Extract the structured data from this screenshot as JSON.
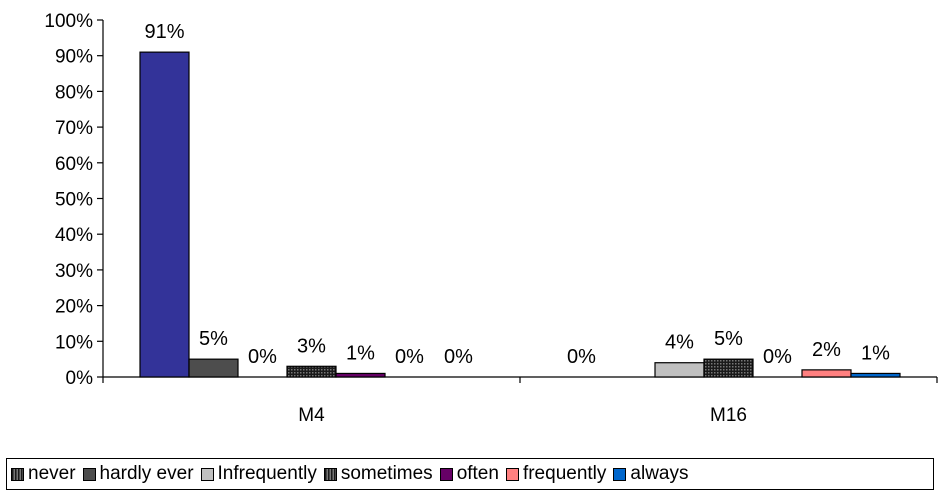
{
  "chart_data": {
    "type": "bar",
    "categories": [
      "M4",
      "M16"
    ],
    "series": [
      {
        "name": "never",
        "values": [
          91,
          0
        ],
        "labels": [
          "91%",
          "0%"
        ],
        "color": "#333399"
      },
      {
        "name": "hardly ever",
        "values": [
          5,
          0
        ],
        "labels": [
          "5%",
          ""
        ],
        "color": "#4d4d4d"
      },
      {
        "name": "Infrequently",
        "values": [
          0,
          4
        ],
        "labels": [
          "0%",
          "4%"
        ],
        "color": "#c0c0c0"
      },
      {
        "name": "sometimes",
        "values": [
          3,
          5
        ],
        "labels": [
          "3%",
          "5%"
        ],
        "color": "#3a3a3a"
      },
      {
        "name": "often",
        "values": [
          1,
          0
        ],
        "labels": [
          "1%",
          "0%"
        ],
        "color": "#660066"
      },
      {
        "name": "frequently",
        "values": [
          0,
          2
        ],
        "labels": [
          "0%",
          "2%"
        ],
        "color": "#ff8080"
      },
      {
        "name": "always",
        "values": [
          0,
          1
        ],
        "labels": [
          "0%",
          "1%"
        ],
        "color": "#0066cc"
      }
    ],
    "yticks": [
      "0%",
      "10%",
      "20%",
      "30%",
      "40%",
      "50%",
      "60%",
      "70%",
      "80%",
      "90%",
      "100%"
    ],
    "ylim": [
      0,
      100
    ],
    "legend_position": "bottom",
    "grid": false
  }
}
